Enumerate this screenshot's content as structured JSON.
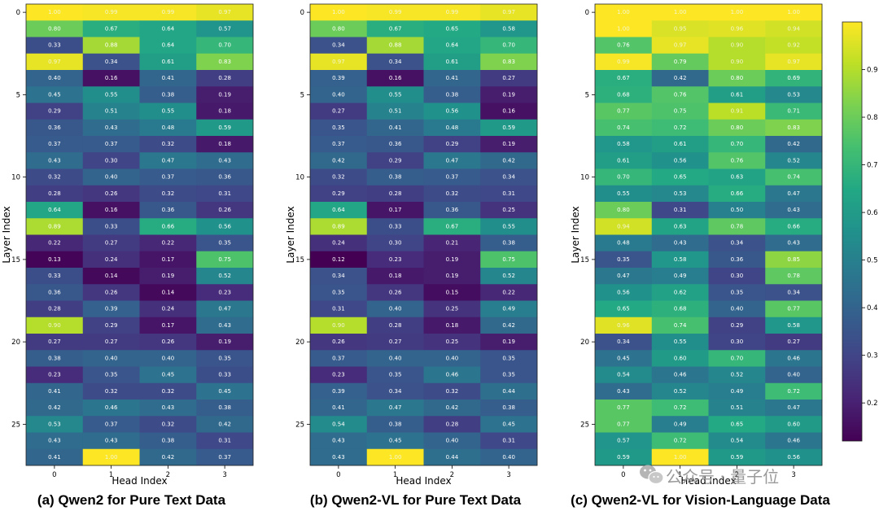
{
  "colors": {
    "colormap": "viridis",
    "light_text": "#ffffff"
  },
  "watermark": {
    "icon": "wechat-icon",
    "text": "公众号 · 量子位"
  },
  "colorbar": {
    "ticks": [
      0.2,
      0.3,
      0.4,
      0.5,
      0.6,
      0.7,
      0.8,
      0.9
    ],
    "vmin": 0.12,
    "vmax": 1.0
  },
  "chart_data": [
    {
      "type": "heatmap",
      "caption": "(a) Qwen2 for Pure Text Data",
      "xlabel": "Head Index",
      "ylabel": "Layer Index",
      "x_ticks": [
        0,
        1,
        2,
        3
      ],
      "y_ticks": [
        0,
        5,
        10,
        15,
        20,
        25
      ],
      "values": [
        [
          1.0,
          0.99,
          0.99,
          0.97
        ],
        [
          0.8,
          0.67,
          0.64,
          0.57
        ],
        [
          0.33,
          0.88,
          0.64,
          0.7
        ],
        [
          0.97,
          0.34,
          0.61,
          0.83
        ],
        [
          0.4,
          0.16,
          0.41,
          0.28
        ],
        [
          0.45,
          0.55,
          0.38,
          0.19
        ],
        [
          0.29,
          0.51,
          0.55,
          0.18
        ],
        [
          0.36,
          0.43,
          0.48,
          0.59
        ],
        [
          0.37,
          0.37,
          0.32,
          0.18
        ],
        [
          0.43,
          0.3,
          0.47,
          0.43
        ],
        [
          0.32,
          0.4,
          0.37,
          0.36
        ],
        [
          0.28,
          0.26,
          0.32,
          0.31
        ],
        [
          0.64,
          0.16,
          0.36,
          0.26
        ],
        [
          0.89,
          0.33,
          0.66,
          0.56
        ],
        [
          0.22,
          0.27,
          0.22,
          0.35
        ],
        [
          0.13,
          0.24,
          0.17,
          0.75
        ],
        [
          0.33,
          0.14,
          0.19,
          0.52
        ],
        [
          0.36,
          0.26,
          0.14,
          0.23
        ],
        [
          0.28,
          0.39,
          0.24,
          0.47
        ],
        [
          0.9,
          0.29,
          0.17,
          0.43
        ],
        [
          0.27,
          0.27,
          0.26,
          0.19
        ],
        [
          0.38,
          0.4,
          0.4,
          0.35
        ],
        [
          0.23,
          0.35,
          0.45,
          0.33
        ],
        [
          0.41,
          0.32,
          0.32,
          0.45
        ],
        [
          0.42,
          0.46,
          0.43,
          0.38
        ],
        [
          0.53,
          0.37,
          0.32,
          0.42
        ],
        [
          0.43,
          0.43,
          0.38,
          0.31
        ],
        [
          0.41,
          1.0,
          0.42,
          0.37
        ]
      ]
    },
    {
      "type": "heatmap",
      "caption": "(b) Qwen2-VL for Pure Text Data",
      "xlabel": "Head Index",
      "ylabel": "Layer Index",
      "x_ticks": [
        0,
        1,
        2,
        3
      ],
      "y_ticks": [
        0,
        5,
        10,
        15,
        20,
        25
      ],
      "values": [
        [
          1.0,
          0.99,
          0.99,
          0.97
        ],
        [
          0.8,
          0.67,
          0.65,
          0.58
        ],
        [
          0.34,
          0.88,
          0.64,
          0.7
        ],
        [
          0.97,
          0.34,
          0.61,
          0.83
        ],
        [
          0.39,
          0.16,
          0.41,
          0.27
        ],
        [
          0.4,
          0.55,
          0.38,
          0.19
        ],
        [
          0.27,
          0.51,
          0.56,
          0.16
        ],
        [
          0.35,
          0.41,
          0.48,
          0.59
        ],
        [
          0.37,
          0.36,
          0.29,
          0.19
        ],
        [
          0.42,
          0.29,
          0.47,
          0.42
        ],
        [
          0.32,
          0.38,
          0.37,
          0.34
        ],
        [
          0.29,
          0.28,
          0.32,
          0.31
        ],
        [
          0.64,
          0.17,
          0.36,
          0.25
        ],
        [
          0.89,
          0.33,
          0.67,
          0.55
        ],
        [
          0.24,
          0.3,
          0.21,
          0.38
        ],
        [
          0.12,
          0.23,
          0.19,
          0.75
        ],
        [
          0.34,
          0.18,
          0.19,
          0.52
        ],
        [
          0.35,
          0.26,
          0.15,
          0.22
        ],
        [
          0.31,
          0.4,
          0.25,
          0.49
        ],
        [
          0.9,
          0.28,
          0.18,
          0.42
        ],
        [
          0.26,
          0.27,
          0.25,
          0.19
        ],
        [
          0.37,
          0.4,
          0.4,
          0.35
        ],
        [
          0.23,
          0.35,
          0.46,
          0.35
        ],
        [
          0.39,
          0.34,
          0.32,
          0.44
        ],
        [
          0.41,
          0.47,
          0.42,
          0.38
        ],
        [
          0.54,
          0.38,
          0.28,
          0.45
        ],
        [
          0.43,
          0.45,
          0.4,
          0.31
        ],
        [
          0.43,
          1.0,
          0.44,
          0.4
        ]
      ]
    },
    {
      "type": "heatmap",
      "caption": "(c) Qwen2-VL for Vision-Language Data",
      "xlabel": "Head Index",
      "ylabel": "Layer Index",
      "x_ticks": [
        0,
        1,
        2,
        3
      ],
      "y_ticks": [
        0,
        5,
        10,
        15,
        20,
        25
      ],
      "values": [
        [
          1.0,
          1.0,
          1.0,
          1.0
        ],
        [
          1.0,
          0.95,
          0.96,
          0.94
        ],
        [
          0.76,
          0.97,
          0.9,
          0.92
        ],
        [
          0.99,
          0.79,
          0.9,
          0.97
        ],
        [
          0.67,
          0.42,
          0.8,
          0.69
        ],
        [
          0.68,
          0.76,
          0.61,
          0.53
        ],
        [
          0.77,
          0.75,
          0.91,
          0.71
        ],
        [
          0.74,
          0.72,
          0.8,
          0.83
        ],
        [
          0.58,
          0.61,
          0.7,
          0.42
        ],
        [
          0.61,
          0.56,
          0.76,
          0.52
        ],
        [
          0.7,
          0.65,
          0.63,
          0.74
        ],
        [
          0.55,
          0.53,
          0.66,
          0.47
        ],
        [
          0.8,
          0.31,
          0.5,
          0.43
        ],
        [
          0.94,
          0.63,
          0.78,
          0.66
        ],
        [
          0.48,
          0.43,
          0.34,
          0.43
        ],
        [
          0.35,
          0.58,
          0.36,
          0.85
        ],
        [
          0.47,
          0.49,
          0.3,
          0.78
        ],
        [
          0.56,
          0.62,
          0.35,
          0.34
        ],
        [
          0.65,
          0.68,
          0.4,
          0.77
        ],
        [
          0.96,
          0.74,
          0.29,
          0.58
        ],
        [
          0.34,
          0.55,
          0.3,
          0.27
        ],
        [
          0.45,
          0.6,
          0.7,
          0.46
        ],
        [
          0.54,
          0.46,
          0.52,
          0.4
        ],
        [
          0.43,
          0.52,
          0.49,
          0.72
        ],
        [
          0.77,
          0.72,
          0.51,
          0.47
        ],
        [
          0.77,
          0.49,
          0.65,
          0.6
        ],
        [
          0.57,
          0.72,
          0.54,
          0.46
        ],
        [
          0.59,
          1.0,
          0.59,
          0.56
        ]
      ]
    }
  ]
}
